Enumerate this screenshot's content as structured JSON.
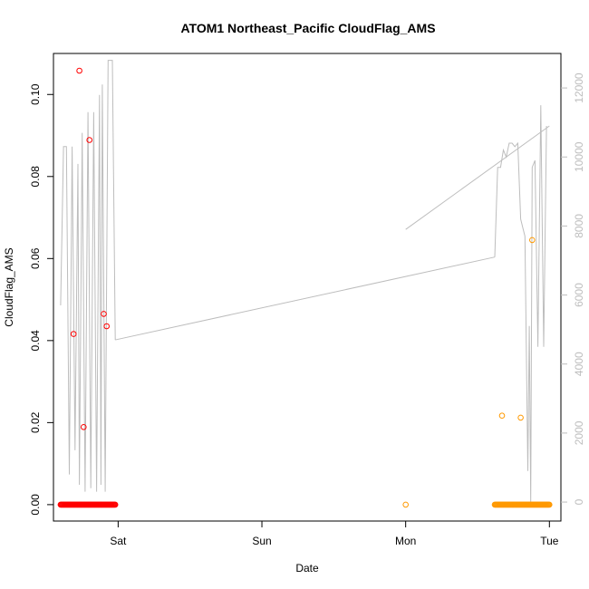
{
  "chart_data": {
    "type": "scatter",
    "title": "ATOM1 Northeast_Pacific CloudFlag_AMS",
    "xlabel": "Date",
    "ylabel": "CloudFlag_AMS",
    "x_ticks": [
      {
        "label": "Sat",
        "day": 1
      },
      {
        "label": "Sun",
        "day": 2
      },
      {
        "label": "Mon",
        "day": 3
      },
      {
        "label": "Tue",
        "day": 4
      }
    ],
    "xlim_days": [
      0.55,
      4.08
    ],
    "ylim": [
      -0.004,
      0.11
    ],
    "y_ticks": [
      0.0,
      0.02,
      0.04,
      0.06,
      0.08,
      0.1
    ],
    "y_tick_labels": [
      "0.00",
      "0.02",
      "0.04",
      "0.06",
      "0.08",
      "0.10"
    ],
    "y2lim": [
      -550,
      13000
    ],
    "y2_ticks": [
      0,
      2000,
      4000,
      6000,
      8000,
      10000,
      12000
    ],
    "y2_tick_labels": [
      "0",
      "2000",
      "4000",
      "6000",
      "8000",
      "10000",
      "12000"
    ],
    "colors": {
      "series1": "#ff0000",
      "series2": "#ff9900",
      "altitude_line": "#bdbdbd",
      "axis": "#000000",
      "right_axis": "#bdbdbd"
    },
    "series": [
      {
        "color": "#ff0000",
        "zero_ranges_days": [
          [
            0.6,
            0.98
          ]
        ],
        "points": [
          {
            "x": 0.69,
            "y": 0.0416
          },
          {
            "x": 0.73,
            "y": 0.1058
          },
          {
            "x": 0.76,
            "y": 0.0189
          },
          {
            "x": 0.8,
            "y": 0.0889
          },
          {
            "x": 0.9,
            "y": 0.0465
          },
          {
            "x": 0.92,
            "y": 0.0435
          }
        ]
      },
      {
        "color": "#ff9900",
        "zero_ranges_days": [
          [
            3.62,
            4.0
          ]
        ],
        "points": [
          {
            "x": 3.0,
            "y": 0.0
          },
          {
            "x": 3.67,
            "y": 0.0217
          },
          {
            "x": 3.8,
            "y": 0.0212
          },
          {
            "x": 3.88,
            "y": 0.0645
          }
        ]
      }
    ],
    "altitude_line": [
      [
        0.6,
        5700
      ],
      [
        0.62,
        10300
      ],
      [
        0.64,
        10300
      ],
      [
        0.66,
        800
      ],
      [
        0.68,
        10300
      ],
      [
        0.7,
        1500
      ],
      [
        0.72,
        9800
      ],
      [
        0.73,
        500
      ],
      [
        0.75,
        10700
      ],
      [
        0.77,
        300
      ],
      [
        0.79,
        11300
      ],
      [
        0.81,
        400
      ],
      [
        0.83,
        11300
      ],
      [
        0.85,
        300
      ],
      [
        0.87,
        11800
      ],
      [
        0.88,
        500
      ],
      [
        0.89,
        12100
      ],
      [
        0.91,
        300
      ],
      [
        0.93,
        12800
      ],
      [
        0.96,
        12800
      ],
      [
        0.98,
        4700
      ],
      [
        3.62,
        7100
      ],
      [
        3.64,
        9700
      ],
      [
        3.66,
        9700
      ],
      [
        3.68,
        10200
      ],
      [
        3.7,
        10000
      ],
      [
        3.72,
        10400
      ],
      [
        3.74,
        10400
      ],
      [
        3.76,
        10300
      ],
      [
        3.78,
        10400
      ],
      [
        3.8,
        8200
      ],
      [
        3.83,
        7700
      ],
      [
        3.85,
        900
      ],
      [
        3.86,
        5100
      ],
      [
        3.87,
        0
      ],
      [
        3.88,
        9700
      ],
      [
        3.9,
        9900
      ],
      [
        3.92,
        4500
      ],
      [
        3.94,
        11500
      ],
      [
        3.96,
        4500
      ],
      [
        3.98,
        10900
      ],
      [
        3.0,
        7900
      ],
      [
        4.0,
        10900
      ]
    ]
  }
}
